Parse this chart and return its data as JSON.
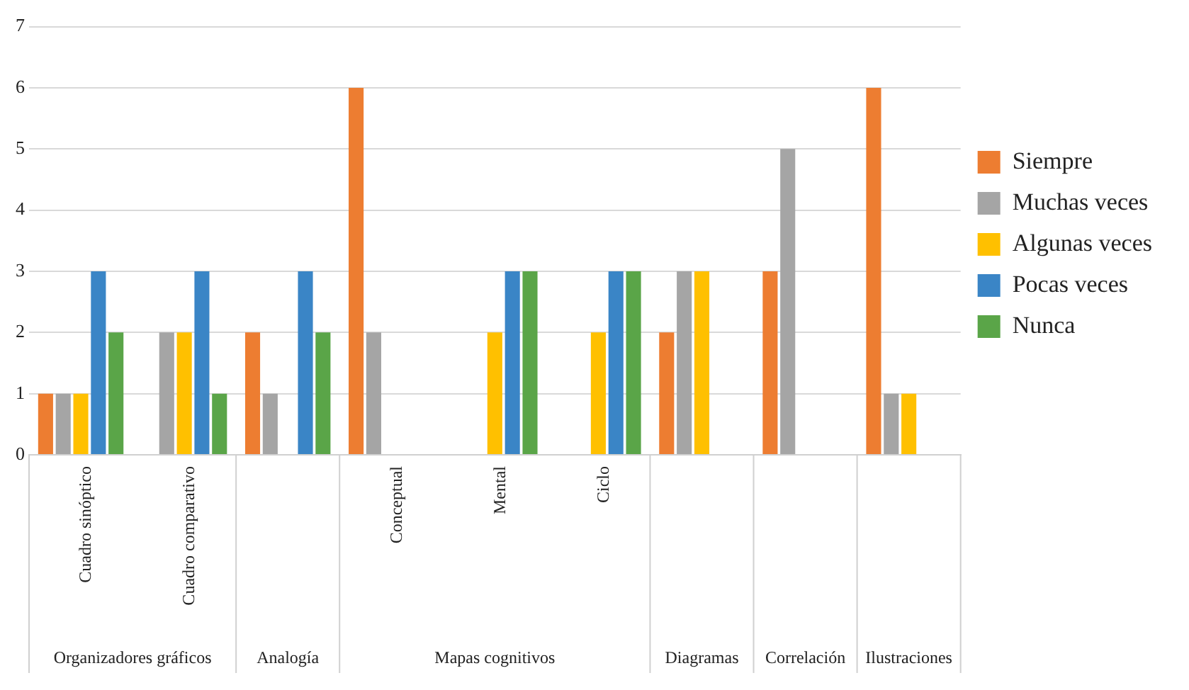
{
  "chart_data": {
    "type": "bar",
    "categories": [
      "Cuadro sinóptico",
      "Cuadro comparativo",
      null,
      "Conceptual",
      "Mental",
      "Ciclo",
      null,
      null,
      null
    ],
    "series": [
      {
        "name": "Siempre",
        "color": "#ed7d31",
        "values": [
          1,
          0,
          2,
          6,
          0,
          0,
          2,
          3,
          6
        ]
      },
      {
        "name": "Muchas veces",
        "color": "#a5a5a5",
        "values": [
          1,
          2,
          1,
          2,
          0,
          0,
          3,
          5,
          1
        ]
      },
      {
        "name": "Algunas veces",
        "color": "#ffc000",
        "values": [
          1,
          2,
          0,
          0,
          2,
          2,
          3,
          0,
          1
        ]
      },
      {
        "name": "Pocas veces",
        "color": "#3a85c6",
        "values": [
          3,
          3,
          3,
          0,
          3,
          3,
          0,
          0,
          0
        ]
      },
      {
        "name": "Nunca",
        "color": "#5aa548",
        "values": [
          2,
          1,
          2,
          0,
          3,
          3,
          0,
          0,
          0
        ]
      }
    ],
    "ylim": [
      0,
      7
    ],
    "yticks": [
      0,
      1,
      2,
      3,
      4,
      5,
      6,
      7
    ],
    "grid": "y",
    "legend": "right",
    "annotations": [
      "Organizadores gráficos",
      "Analogía",
      "Mapas cognitivos",
      "Diagramas",
      "Correlación",
      "Ilustraciones"
    ]
  }
}
